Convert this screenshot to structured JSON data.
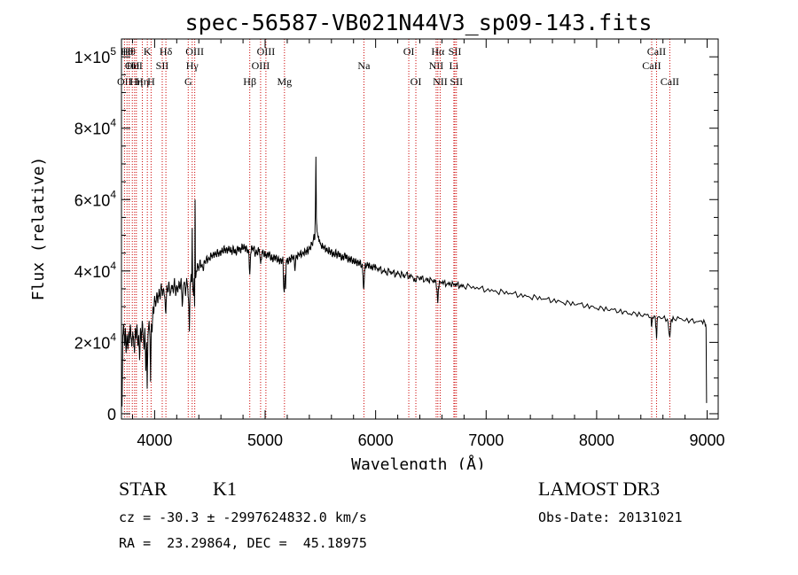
{
  "chart_data": {
    "type": "line",
    "title": "spec-56587-VB021N44V3_sp09-143.fits",
    "xlabel": "Wavelength (Å)",
    "ylabel": "Flux (relative)",
    "xlim": [
      3700,
      9100
    ],
    "ylim": [
      -1500,
      105000
    ],
    "x_ticks": [
      {
        "value": 4000,
        "label": "4000"
      },
      {
        "value": 5000,
        "label": "5000"
      },
      {
        "value": 6000,
        "label": "6000"
      },
      {
        "value": 7000,
        "label": "7000"
      },
      {
        "value": 8000,
        "label": "8000"
      },
      {
        "value": 9000,
        "label": "9000"
      }
    ],
    "y_ticks": [
      {
        "value": 0,
        "mant": "0",
        "exp": ""
      },
      {
        "value": 20000,
        "mant": "2×10",
        "exp": "4"
      },
      {
        "value": 40000,
        "mant": "4×10",
        "exp": "4"
      },
      {
        "value": 60000,
        "mant": "6×10",
        "exp": "4"
      },
      {
        "value": 80000,
        "mant": "8×10",
        "exp": "4"
      },
      {
        "value": 100000,
        "mant": "1×10",
        "exp": "5"
      }
    ],
    "x_minor_step": 200,
    "y_minor_step": 5000,
    "spectrum_color": "#000000",
    "line_marker_color": "#cc0000",
    "spectrum": [
      [
        3705,
        2000
      ],
      [
        3712,
        22000
      ],
      [
        3720,
        25000
      ],
      [
        3728,
        19000
      ],
      [
        3735,
        24000
      ],
      [
        3742,
        17000
      ],
      [
        3750,
        22000
      ],
      [
        3758,
        18000
      ],
      [
        3765,
        23000
      ],
      [
        3772,
        20000
      ],
      [
        3780,
        25000
      ],
      [
        3788,
        21000
      ],
      [
        3795,
        19000
      ],
      [
        3802,
        23000
      ],
      [
        3810,
        20500
      ],
      [
        3818,
        17000
      ],
      [
        3825,
        24000
      ],
      [
        3832,
        21000
      ],
      [
        3840,
        25000
      ],
      [
        3848,
        19000
      ],
      [
        3856,
        22000
      ],
      [
        3864,
        15000
      ],
      [
        3872,
        24000
      ],
      [
        3880,
        20000
      ],
      [
        3888,
        26000
      ],
      [
        3896,
        22000
      ],
      [
        3904,
        18000
      ],
      [
        3912,
        24000
      ],
      [
        3920,
        12000
      ],
      [
        3928,
        20000
      ],
      [
        3933,
        7000
      ],
      [
        3940,
        22000
      ],
      [
        3950,
        26000
      ],
      [
        3958,
        21000
      ],
      [
        3963,
        9000
      ],
      [
        3970,
        25000
      ],
      [
        3978,
        23000
      ],
      [
        3985,
        30000
      ],
      [
        3992,
        28000
      ],
      [
        4000,
        33000
      ],
      [
        4010,
        30000
      ],
      [
        4020,
        34000
      ],
      [
        4030,
        31000
      ],
      [
        4040,
        35000
      ],
      [
        4050,
        32000
      ],
      [
        4060,
        36500
      ],
      [
        4070,
        33000
      ],
      [
        4080,
        35000
      ],
      [
        4090,
        33000
      ],
      [
        4102,
        28000
      ],
      [
        4110,
        36000
      ],
      [
        4120,
        34000
      ],
      [
        4130,
        37000
      ],
      [
        4140,
        33000
      ],
      [
        4150,
        35000
      ],
      [
        4160,
        36000
      ],
      [
        4170,
        34000
      ],
      [
        4180,
        38000
      ],
      [
        4190,
        33000
      ],
      [
        4200,
        36000
      ],
      [
        4210,
        34000
      ],
      [
        4220,
        37000
      ],
      [
        4230,
        35000
      ],
      [
        4240,
        38000
      ],
      [
        4250,
        30000
      ],
      [
        4260,
        36000
      ],
      [
        4270,
        37000
      ],
      [
        4280,
        33000
      ],
      [
        4290,
        38000
      ],
      [
        4300,
        35000
      ],
      [
        4310,
        30000
      ],
      [
        4315,
        23000
      ],
      [
        4320,
        35000
      ],
      [
        4330,
        39000
      ],
      [
        4336,
        37000
      ],
      [
        4340,
        52000
      ],
      [
        4344,
        36000
      ],
      [
        4352,
        33000
      ],
      [
        4358,
        38000
      ],
      [
        4362,
        30000
      ],
      [
        4366,
        60000
      ],
      [
        4370,
        38000
      ],
      [
        4380,
        40000
      ],
      [
        4390,
        42000
      ],
      [
        4400,
        40000
      ],
      [
        4410,
        43000
      ],
      [
        4420,
        41000
      ],
      [
        4430,
        42000
      ],
      [
        4440,
        40000
      ],
      [
        4450,
        43000
      ],
      [
        4460,
        42000
      ],
      [
        4470,
        44000
      ],
      [
        4480,
        42500
      ],
      [
        4490,
        44000
      ],
      [
        4500,
        43000
      ],
      [
        4510,
        45000
      ],
      [
        4520,
        43500
      ],
      [
        4530,
        45000
      ],
      [
        4540,
        44000
      ],
      [
        4550,
        45500
      ],
      [
        4560,
        44000
      ],
      [
        4570,
        46000
      ],
      [
        4580,
        44000
      ],
      [
        4590,
        45500
      ],
      [
        4600,
        44500
      ],
      [
        4610,
        46500
      ],
      [
        4620,
        45000
      ],
      [
        4630,
        47000
      ],
      [
        4640,
        45000
      ],
      [
        4650,
        46500
      ],
      [
        4660,
        45000
      ],
      [
        4670,
        47000
      ],
      [
        4680,
        45500
      ],
      [
        4690,
        46500
      ],
      [
        4700,
        44500
      ],
      [
        4710,
        47000
      ],
      [
        4720,
        45000
      ],
      [
        4730,
        46000
      ],
      [
        4740,
        44500
      ],
      [
        4750,
        47000
      ],
      [
        4760,
        45500
      ],
      [
        4770,
        46500
      ],
      [
        4780,
        45000
      ],
      [
        4790,
        47500
      ],
      [
        4800,
        46000
      ],
      [
        4810,
        47500
      ],
      [
        4820,
        45500
      ],
      [
        4830,
        47000
      ],
      [
        4840,
        45000
      ],
      [
        4850,
        46000
      ],
      [
        4861,
        39000
      ],
      [
        4870,
        45000
      ],
      [
        4880,
        47000
      ],
      [
        4890,
        45500
      ],
      [
        4900,
        47000
      ],
      [
        4910,
        44000
      ],
      [
        4920,
        46000
      ],
      [
        4930,
        44500
      ],
      [
        4940,
        46500
      ],
      [
        4950,
        45000
      ],
      [
        4960,
        42000
      ],
      [
        4970,
        44500
      ],
      [
        4980,
        46000
      ],
      [
        4990,
        44000
      ],
      [
        5000,
        45500
      ],
      [
        5010,
        43500
      ],
      [
        5020,
        45000
      ],
      [
        5030,
        44000
      ],
      [
        5040,
        45500
      ],
      [
        5050,
        43000
      ],
      [
        5060,
        44500
      ],
      [
        5070,
        42500
      ],
      [
        5080,
        44500
      ],
      [
        5090,
        43000
      ],
      [
        5100,
        44500
      ],
      [
        5110,
        42500
      ],
      [
        5120,
        44000
      ],
      [
        5130,
        42000
      ],
      [
        5140,
        43500
      ],
      [
        5150,
        42000
      ],
      [
        5160,
        44000
      ],
      [
        5167,
        36000
      ],
      [
        5172,
        34000
      ],
      [
        5180,
        39000
      ],
      [
        5185,
        35000
      ],
      [
        5190,
        42000
      ],
      [
        5200,
        43500
      ],
      [
        5210,
        42000
      ],
      [
        5220,
        44000
      ],
      [
        5230,
        42500
      ],
      [
        5240,
        44500
      ],
      [
        5250,
        43000
      ],
      [
        5260,
        44500
      ],
      [
        5270,
        40000
      ],
      [
        5280,
        44500
      ],
      [
        5290,
        43500
      ],
      [
        5300,
        45000
      ],
      [
        5310,
        44000
      ],
      [
        5320,
        45500
      ],
      [
        5330,
        44000
      ],
      [
        5340,
        45500
      ],
      [
        5350,
        44500
      ],
      [
        5360,
        46000
      ],
      [
        5370,
        44500
      ],
      [
        5380,
        46500
      ],
      [
        5390,
        45000
      ],
      [
        5400,
        47000
      ],
      [
        5410,
        46000
      ],
      [
        5420,
        48000
      ],
      [
        5430,
        47000
      ],
      [
        5440,
        50000
      ],
      [
        5450,
        49000
      ],
      [
        5455,
        58000
      ],
      [
        5460,
        72000
      ],
      [
        5464,
        55000
      ],
      [
        5470,
        51000
      ],
      [
        5480,
        49500
      ],
      [
        5490,
        48500
      ],
      [
        5500,
        48000
      ],
      [
        5510,
        46500
      ],
      [
        5520,
        47500
      ],
      [
        5530,
        46000
      ],
      [
        5540,
        47000
      ],
      [
        5550,
        45500
      ],
      [
        5560,
        46500
      ],
      [
        5570,
        45000
      ],
      [
        5580,
        46500
      ],
      [
        5590,
        44500
      ],
      [
        5600,
        46000
      ],
      [
        5610,
        44000
      ],
      [
        5620,
        45500
      ],
      [
        5630,
        44000
      ],
      [
        5640,
        46000
      ],
      [
        5650,
        43500
      ],
      [
        5660,
        45500
      ],
      [
        5670,
        44000
      ],
      [
        5680,
        45000
      ],
      [
        5690,
        43000
      ],
      [
        5700,
        44500
      ],
      [
        5710,
        43000
      ],
      [
        5720,
        45000
      ],
      [
        5730,
        43500
      ],
      [
        5740,
        44500
      ],
      [
        5750,
        42500
      ],
      [
        5760,
        44000
      ],
      [
        5770,
        42500
      ],
      [
        5780,
        44000
      ],
      [
        5790,
        42000
      ],
      [
        5800,
        43500
      ],
      [
        5810,
        42000
      ],
      [
        5820,
        43500
      ],
      [
        5830,
        41500
      ],
      [
        5840,
        43000
      ],
      [
        5850,
        41500
      ],
      [
        5860,
        43000
      ],
      [
        5870,
        41000
      ],
      [
        5880,
        42000
      ],
      [
        5889,
        36000
      ],
      [
        5893,
        35000
      ],
      [
        5898,
        38000
      ],
      [
        5905,
        42000
      ],
      [
        5915,
        41000
      ],
      [
        5925,
        42500
      ],
      [
        5935,
        41000
      ],
      [
        5945,
        42000
      ],
      [
        5955,
        40500
      ],
      [
        5965,
        41500
      ],
      [
        5975,
        40500
      ],
      [
        5985,
        42000
      ],
      [
        5995,
        40500
      ],
      [
        6000,
        41500
      ],
      [
        6020,
        40000
      ],
      [
        6040,
        41000
      ],
      [
        6060,
        39500
      ],
      [
        6080,
        40500
      ],
      [
        6100,
        39000
      ],
      [
        6120,
        40500
      ],
      [
        6140,
        39000
      ],
      [
        6160,
        40000
      ],
      [
        6180,
        38500
      ],
      [
        6200,
        40000
      ],
      [
        6220,
        38500
      ],
      [
        6240,
        39500
      ],
      [
        6260,
        38000
      ],
      [
        6280,
        39500
      ],
      [
        6300,
        38000
      ],
      [
        6320,
        39000
      ],
      [
        6340,
        38000
      ],
      [
        6360,
        37000
      ],
      [
        6380,
        38500
      ],
      [
        6400,
        37500
      ],
      [
        6420,
        38500
      ],
      [
        6440,
        37000
      ],
      [
        6460,
        38000
      ],
      [
        6480,
        37000
      ],
      [
        6500,
        37800
      ],
      [
        6520,
        36800
      ],
      [
        6540,
        37500
      ],
      [
        6555,
        35000
      ],
      [
        6562,
        31000
      ],
      [
        6570,
        35500
      ],
      [
        6580,
        37000
      ],
      [
        6600,
        36500
      ],
      [
        6620,
        37000
      ],
      [
        6640,
        36000
      ],
      [
        6660,
        36800
      ],
      [
        6680,
        36000
      ],
      [
        6700,
        36500
      ],
      [
        6720,
        35800
      ],
      [
        6740,
        36500
      ],
      [
        6760,
        35500
      ],
      [
        6780,
        36200
      ],
      [
        6800,
        35500
      ],
      [
        6850,
        35800
      ],
      [
        6900,
        35000
      ],
      [
        6950,
        35300
      ],
      [
        7000,
        34500
      ],
      [
        7050,
        34800
      ],
      [
        7100,
        34000
      ],
      [
        7150,
        34300
      ],
      [
        7200,
        33500
      ],
      [
        7250,
        33800
      ],
      [
        7300,
        33000
      ],
      [
        7350,
        33300
      ],
      [
        7400,
        32500
      ],
      [
        7450,
        32800
      ],
      [
        7500,
        32000
      ],
      [
        7550,
        32200
      ],
      [
        7600,
        31500
      ],
      [
        7650,
        31800
      ],
      [
        7700,
        31000
      ],
      [
        7750,
        31200
      ],
      [
        7800,
        30500
      ],
      [
        7850,
        30800
      ],
      [
        7900,
        30000
      ],
      [
        7950,
        30200
      ],
      [
        8000,
        29500
      ],
      [
        8050,
        29700
      ],
      [
        8100,
        29000
      ],
      [
        8150,
        29200
      ],
      [
        8200,
        28500
      ],
      [
        8250,
        28700
      ],
      [
        8300,
        28000
      ],
      [
        8350,
        28200
      ],
      [
        8400,
        27500
      ],
      [
        8450,
        27700
      ],
      [
        8490,
        27000
      ],
      [
        8498,
        24500
      ],
      [
        8505,
        27000
      ],
      [
        8530,
        27200
      ],
      [
        8542,
        21000
      ],
      [
        8550,
        27000
      ],
      [
        8600,
        26800
      ],
      [
        8640,
        26500
      ],
      [
        8662,
        21500
      ],
      [
        8675,
        26500
      ],
      [
        8700,
        26500
      ],
      [
        8750,
        26700
      ],
      [
        8800,
        26000
      ],
      [
        8850,
        26200
      ],
      [
        8900,
        25800
      ],
      [
        8950,
        26000
      ],
      [
        8980,
        25500
      ],
      [
        8990,
        24000
      ],
      [
        8995,
        3000
      ]
    ],
    "line_markers": [
      {
        "wl": 3727,
        "label": "OII",
        "row": 3
      },
      {
        "wl": 3750,
        "label": "Hθ",
        "row": 1
      },
      {
        "wl": 3770,
        "label": "Hθ",
        "row": 1
      },
      {
        "wl": 3798,
        "label": "OII",
        "row": 2
      },
      {
        "wl": 3819,
        "label": "HeI",
        "row": 2
      },
      {
        "wl": 3835,
        "label": "Hη",
        "row": 3
      },
      {
        "wl": 3889,
        "label": "Hη",
        "row": 3
      },
      {
        "wl": 3934,
        "label": "K",
        "row": 1
      },
      {
        "wl": 3968,
        "label": "H",
        "row": 3
      },
      {
        "wl": 4069,
        "label": "SII",
        "row": 2
      },
      {
        "wl": 4102,
        "label": "Hδ",
        "row": 1
      },
      {
        "wl": 4304,
        "label": "G",
        "row": 3
      },
      {
        "wl": 4340,
        "label": "Hγ",
        "row": 2
      },
      {
        "wl": 4363,
        "label": "OIII",
        "row": 1
      },
      {
        "wl": 4861,
        "label": "Hβ",
        "row": 3
      },
      {
        "wl": 4959,
        "label": "OIII",
        "row": 2
      },
      {
        "wl": 5007,
        "label": "OIII",
        "row": 1
      },
      {
        "wl": 5175,
        "label": "Mg",
        "row": 3
      },
      {
        "wl": 5894,
        "label": "Na",
        "row": 2
      },
      {
        "wl": 6300,
        "label": "OI",
        "row": 1
      },
      {
        "wl": 6364,
        "label": "OI",
        "row": 3
      },
      {
        "wl": 6548,
        "label": "NII",
        "row": 2
      },
      {
        "wl": 6563,
        "label": "Hα",
        "row": 1
      },
      {
        "wl": 6584,
        "label": "NII",
        "row": 3
      },
      {
        "wl": 6708,
        "label": "Li",
        "row": 2
      },
      {
        "wl": 6717,
        "label": "SII",
        "row": 1
      },
      {
        "wl": 6731,
        "label": "SII",
        "row": 3
      },
      {
        "wl": 8498,
        "label": "CaII",
        "row": 2
      },
      {
        "wl": 8542,
        "label": "CaII",
        "row": 1
      },
      {
        "wl": 8662,
        "label": "CaII",
        "row": 3
      }
    ]
  },
  "info": {
    "object_class": "STAR",
    "subclass": "K1",
    "survey": "LAMOST DR3",
    "redshift": "cz = -30.3 ± -2997624832.0 km/s",
    "obs_date": "Obs-Date: 20131021",
    "coords": "RA =  23.29864, DEC =  45.18975"
  }
}
